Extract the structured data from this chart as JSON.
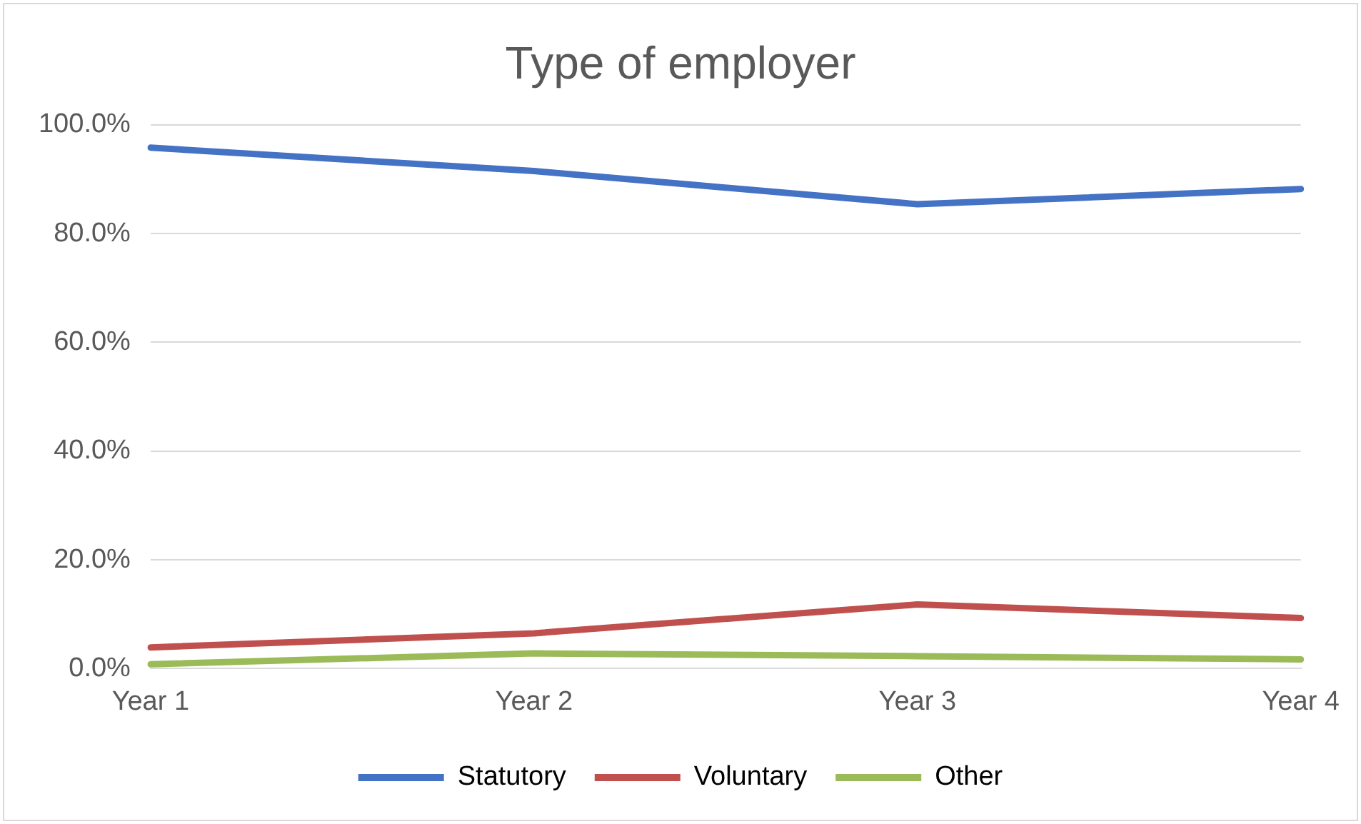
{
  "chart_data": {
    "type": "line",
    "title": "Type of employer",
    "categories": [
      "Year 1",
      "Year 2",
      "Year 3",
      "Year 4"
    ],
    "series": [
      {
        "name": "Statutory",
        "color": "#4472c4",
        "values": [
          95.8,
          91.5,
          85.4,
          88.2
        ]
      },
      {
        "name": "Voluntary",
        "color": "#c0504d",
        "values": [
          3.9,
          6.5,
          11.8,
          9.3
        ]
      },
      {
        "name": "Other",
        "color": "#9bbb59",
        "values": [
          0.8,
          2.8,
          2.3,
          1.7
        ]
      }
    ],
    "ylim": [
      0,
      100
    ],
    "yticks": [
      {
        "value": 0,
        "label": "0.0%"
      },
      {
        "value": 20,
        "label": "20.0%"
      },
      {
        "value": 40,
        "label": "40.0%"
      },
      {
        "value": 60,
        "label": "60.0%"
      },
      {
        "value": 80,
        "label": "80.0%"
      },
      {
        "value": 100,
        "label": "100.0%"
      }
    ],
    "grid": "y",
    "legend": "bottom",
    "marker": "none",
    "line_style": "solid"
  }
}
